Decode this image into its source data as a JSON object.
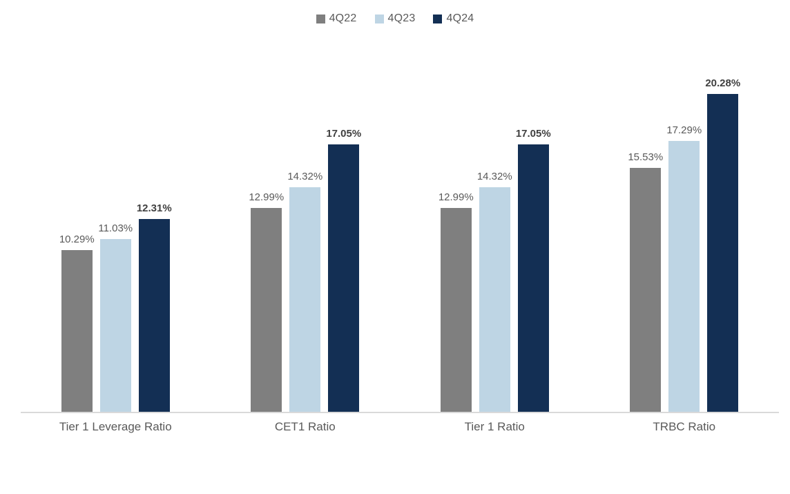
{
  "colors": {
    "series_4q22": "#7f7f7f",
    "series_4q23": "#bed5e4",
    "series_4q24": "#132f54",
    "axis_line": "#d9d9d9",
    "label_text": "#595959",
    "label_text_emphasis": "#404040"
  },
  "legend": {
    "position": "top-center",
    "items": [
      {
        "label": "4Q22",
        "color": "#7f7f7f"
      },
      {
        "label": "4Q23",
        "color": "#bed5e4"
      },
      {
        "label": "4Q24",
        "color": "#132f54"
      }
    ]
  },
  "chart_data": {
    "type": "bar",
    "title": "",
    "xlabel": "",
    "ylabel": "",
    "categories": [
      "Tier 1 Leverage Ratio",
      "CET1 Ratio",
      "Tier 1 Ratio",
      "TRBC Ratio"
    ],
    "series": [
      {
        "name": "4Q22",
        "color": "#7f7f7f",
        "emphasis": false,
        "values": [
          10.29,
          12.99,
          12.99,
          15.53
        ]
      },
      {
        "name": "4Q23",
        "color": "#bed5e4",
        "emphasis": false,
        "values": [
          11.03,
          14.32,
          14.32,
          17.29
        ]
      },
      {
        "name": "4Q24",
        "color": "#132f54",
        "emphasis": true,
        "values": [
          12.31,
          17.05,
          17.05,
          20.28
        ]
      }
    ],
    "data_labels": {
      "visible": true,
      "format": "0.00%"
    },
    "ylim": [
      0,
      22
    ],
    "grid": false,
    "y_axis_visible": false,
    "legend_position": "top"
  }
}
